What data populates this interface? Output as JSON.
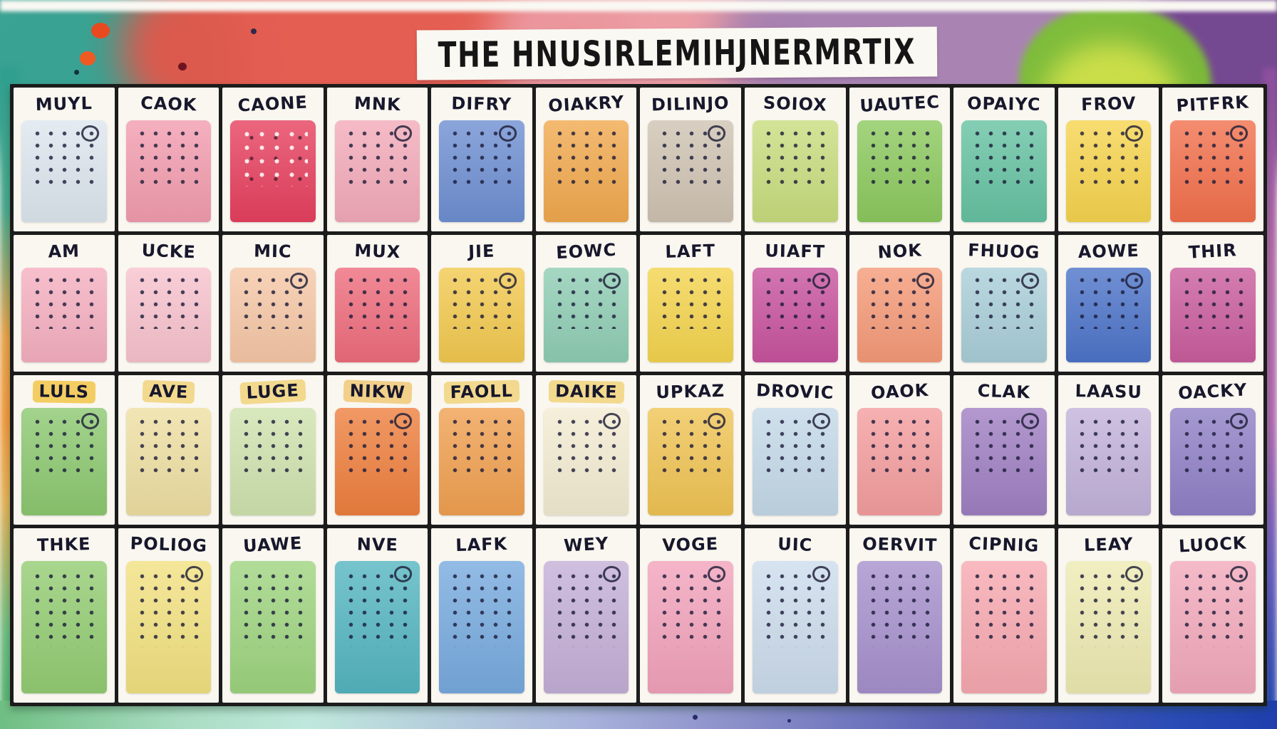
{
  "title": "THE HNUSIRLEMIHJNERMRTIX",
  "background": {
    "paper": "#faf8f3",
    "top_left_teal": "#2f9e8e",
    "top_red": "#e4564a",
    "top_pink": "#ec9aa2",
    "top_purple": "#a57fb0",
    "top_right_purple": "#6f3f8e",
    "green_blob": "#7cbf35",
    "green_blob_center": "#cfe04a",
    "left_edge_orange": "#f09a40",
    "bottom_left_green": "#6fbe82",
    "bottom_mint": "#bfe8dc",
    "bottom_blue": "#2a4bb5",
    "grid_line": "#1c1c1c",
    "cell_paper": "#faf7f0",
    "ink": "#17172c"
  },
  "grid": {
    "rows": 4,
    "cols": 12,
    "cells": [
      {
        "label": "MUYL",
        "color": "#dde6ee",
        "ring": true
      },
      {
        "label": "CAOK",
        "color": "#f29cae"
      },
      {
        "label": "CAONE",
        "color": "#e6405e",
        "dots": "light"
      },
      {
        "label": "MNK",
        "color": "#f3aab9",
        "ring": true
      },
      {
        "label": "DIFRY",
        "color": "#6e8fd2",
        "ring": true
      },
      {
        "label": "OIAKRY",
        "color": "#f1a94e"
      },
      {
        "label": "DILINJO",
        "color": "#cfc3b2",
        "ring": true
      },
      {
        "label": "SOIOX",
        "color": "#c8dd7e"
      },
      {
        "label": "UAUTEC",
        "color": "#8cc95e"
      },
      {
        "label": "OPAIYC",
        "color": "#66c2a2"
      },
      {
        "label": "FROV",
        "color": "#f6d44e",
        "ring": true
      },
      {
        "label": "PITFRK",
        "color": "#f2704c",
        "ring": true
      },
      {
        "label": "AM",
        "color": "#f5afc0"
      },
      {
        "label": "UCKE",
        "color": "#f8c2cd"
      },
      {
        "label": "MIC",
        "color": "#f6c7a6",
        "ring": true
      },
      {
        "label": "MUX",
        "color": "#ee6c7c"
      },
      {
        "label": "JIE",
        "color": "#f2c94f",
        "ring": true
      },
      {
        "label": "EOWC",
        "color": "#8fcdb4",
        "ring": true
      },
      {
        "label": "LAFT",
        "color": "#f4d44e"
      },
      {
        "label": "UIAFT",
        "color": "#c8539e",
        "ring": true
      },
      {
        "label": "NOK",
        "color": "#f59a78",
        "ring": true
      },
      {
        "label": "FHUOG",
        "color": "#a9ced8",
        "ring": true
      },
      {
        "label": "AOWE",
        "color": "#4d74c9",
        "ring": true
      },
      {
        "label": "THIR",
        "color": "#ca5d9e"
      },
      {
        "label": "LULS",
        "color": "#8cc870",
        "label_bg": "#f4cd62",
        "ring": true
      },
      {
        "label": "AVE",
        "color": "#eedfa2",
        "label_bg": "#f2d98e"
      },
      {
        "label": "LUGE",
        "color": "#cfe3ae",
        "label_bg": "#f2d98e"
      },
      {
        "label": "NIKW",
        "color": "#ee7f3e",
        "label_bg": "#f2d08a",
        "ring": true
      },
      {
        "label": "FAOLL",
        "color": "#f0a050",
        "label_bg": "#f2d98e"
      },
      {
        "label": "DAIKE",
        "color": "#f3ecd2",
        "label_bg": "#f2d98e",
        "ring": true
      },
      {
        "label": "UPKAZ",
        "color": "#f0c454",
        "ring": true
      },
      {
        "label": "DROVIC",
        "color": "#c4d9e8",
        "ring": true
      },
      {
        "label": "OAOK",
        "color": "#f49d9e"
      },
      {
        "label": "CLAK",
        "color": "#9f7fc2",
        "ring": true
      },
      {
        "label": "LAASU",
        "color": "#c2b2da"
      },
      {
        "label": "OACKY",
        "color": "#8f80c6",
        "ring": true
      },
      {
        "label": "THKE",
        "color": "#93cc72"
      },
      {
        "label": "POLIOG",
        "color": "#f2e180",
        "ring": true
      },
      {
        "label": "UAWE",
        "color": "#9ed47f"
      },
      {
        "label": "NVE",
        "color": "#54b5c0",
        "ring": true
      },
      {
        "label": "LAFK",
        "color": "#77aade"
      },
      {
        "label": "WEY",
        "color": "#c4afd7",
        "ring": true
      },
      {
        "label": "VOGE",
        "color": "#f2a2bb",
        "ring": true
      },
      {
        "label": "UIC",
        "color": "#ccdcec",
        "ring": true
      },
      {
        "label": "OERVIT",
        "color": "#a690cc"
      },
      {
        "label": "CIPNIG",
        "color": "#f7a8b0"
      },
      {
        "label": "LEAY",
        "color": "#eeeab2",
        "ring": true
      },
      {
        "label": "LUOCK",
        "color": "#f2a9bb",
        "ring": true
      }
    ]
  }
}
